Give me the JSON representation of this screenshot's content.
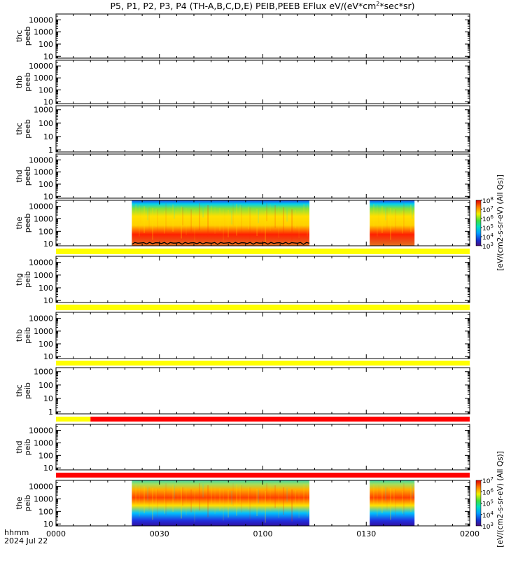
{
  "title": {
    "main": "P5, P1, P2, P3, P4 (TH-A,B,C,D,E) PEIB,PEEB EFlux eV/(eV*cm",
    "sup": "2",
    "tail": "*sec*sr)"
  },
  "colorbar_label": "[eV/(cm2-s-sr-eV) (All Qs)]",
  "time_axis": {
    "label_fmt": "hhmm",
    "date": "2024 Jul 22",
    "ticks": [
      {
        "label": "0000",
        "minutes": 0
      },
      {
        "label": "0030",
        "minutes": 30
      },
      {
        "label": "0100",
        "minutes": 60
      },
      {
        "label": "0130",
        "minutes": 90
      },
      {
        "label": "0200",
        "minutes": 120
      }
    ]
  },
  "chart_data": {
    "type": "heatmap",
    "x_range_minutes": [
      0,
      120
    ],
    "y_scale": "log",
    "panels": [
      {
        "probe": "thc",
        "product": "peeb",
        "ylabel": [
          "thc",
          "peeb"
        ],
        "ylim": [
          7,
          30000
        ],
        "ticks": [
          "10",
          "100",
          "1000",
          "10000"
        ],
        "flag": null
      },
      {
        "probe": "thb",
        "product": "peeb",
        "ylabel": [
          "thb",
          "peeb"
        ],
        "ylim": [
          7,
          30000
        ],
        "ticks": [
          "10",
          "100",
          "1000",
          "10000"
        ],
        "flag": null
      },
      {
        "probe": "thc",
        "product": "peeb",
        "ylabel": [
          "thc",
          "peeb"
        ],
        "ylim": [
          0.7,
          2000
        ],
        "ticks": [
          "1",
          "10",
          "100",
          "1000"
        ],
        "flag": null
      },
      {
        "probe": "thd",
        "product": "peeb",
        "ylabel": [
          "thd",
          "peeb"
        ],
        "ylim": [
          7,
          30000
        ],
        "ticks": [
          "10",
          "100",
          "1000",
          "10000"
        ],
        "flag": null
      },
      {
        "probe": "the",
        "product": "peeb",
        "ylabel": [
          "the",
          "peeb"
        ],
        "ylim": [
          7,
          30000
        ],
        "ticks": [
          "10",
          "100",
          "1000",
          "10000"
        ],
        "data_segments_minutes": [
          [
            22,
            73.5
          ],
          [
            91,
            104
          ]
        ],
        "colorbar": {
          "min_exp": 3,
          "max_exp": 8,
          "ticks": [
            "10",
            "10",
            "10",
            "10",
            "10",
            "10"
          ],
          "exps": [
            "3",
            "4",
            "5",
            "6",
            "7",
            "8"
          ]
        },
        "flag": {
          "color": "yellow",
          "ranges_minutes": [
            [
              0,
              120
            ]
          ]
        }
      },
      {
        "probe": "thg",
        "product": "peib",
        "ylabel": [
          "thg",
          "peib"
        ],
        "ylim": [
          7,
          30000
        ],
        "ticks": [
          "10",
          "100",
          "1000",
          "10000"
        ],
        "flag": {
          "color": "yellow",
          "ranges_minutes": [
            [
              0,
              120
            ]
          ]
        }
      },
      {
        "probe": "thb",
        "product": "peib",
        "ylabel": [
          "thb",
          "peib"
        ],
        "ylim": [
          7,
          30000
        ],
        "ticks": [
          "10",
          "100",
          "1000",
          "10000"
        ],
        "flag": {
          "color": "yellow",
          "ranges_minutes": [
            [
              0,
              120
            ]
          ]
        }
      },
      {
        "probe": "thc",
        "product": "peib",
        "ylabel": [
          "thc",
          "peib"
        ],
        "ylim": [
          0.7,
          2000
        ],
        "ticks": [
          "1",
          "10",
          "100",
          "1000"
        ],
        "flag": {
          "segments": [
            {
              "color": "yellow",
              "range": [
                0,
                10
              ]
            },
            {
              "color": "red",
              "range": [
                10,
                120
              ]
            }
          ]
        }
      },
      {
        "probe": "thd",
        "product": "peib",
        "ylabel": [
          "thd",
          "peib"
        ],
        "ylim": [
          7,
          30000
        ],
        "ticks": [
          "10",
          "100",
          "1000",
          "10000"
        ],
        "flag": {
          "color": "red",
          "ranges_minutes": [
            [
              0,
              120
            ]
          ]
        }
      },
      {
        "probe": "the",
        "product": "peib",
        "ylabel": [
          "the",
          "peib"
        ],
        "ylim": [
          7,
          30000
        ],
        "ticks": [
          "10",
          "100",
          "1000",
          "10000"
        ],
        "data_segments_minutes": [
          [
            22,
            73.5
          ],
          [
            91,
            104
          ]
        ],
        "colorbar": {
          "min_exp": 3,
          "max_exp": 7,
          "ticks": [
            "10",
            "10",
            "10",
            "10",
            "10"
          ],
          "exps": [
            "3",
            "4",
            "5",
            "6",
            "7"
          ]
        },
        "flag": null
      }
    ]
  }
}
